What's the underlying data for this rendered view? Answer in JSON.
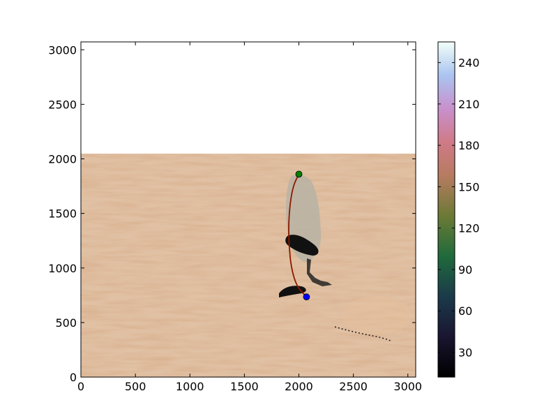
{
  "chart_data": {
    "type": "image",
    "title": "",
    "xlabel": "",
    "ylabel": "",
    "xlim": [
      0,
      3072
    ],
    "ylim": [
      0,
      3072
    ],
    "xticks": [
      0,
      500,
      1000,
      1500,
      2000,
      2500,
      3000
    ],
    "yticks": [
      0,
      500,
      1000,
      1500,
      2000,
      2500,
      3000
    ],
    "image_extent": {
      "x": [
        0,
        3072
      ],
      "y": [
        0,
        2048
      ]
    },
    "image_description_colors": {
      "sand": "#d5aa85",
      "dark": "#111111",
      "grey": "#b9b3a4"
    },
    "markers": [
      {
        "name": "start",
        "x": 2000,
        "y": 1860,
        "color": "#008000"
      },
      {
        "name": "end",
        "x": 2070,
        "y": 735,
        "color": "#0000ff"
      }
    ],
    "path": {
      "color": "#8b1a00",
      "points": [
        [
          2000,
          1860
        ],
        [
          1950,
          1760
        ],
        [
          1920,
          1600
        ],
        [
          1905,
          1400
        ],
        [
          1910,
          1200
        ],
        [
          1930,
          1000
        ],
        [
          1980,
          830
        ],
        [
          2070,
          735
        ]
      ]
    },
    "colorbar": {
      "cmap": "cubehelix",
      "range": [
        12,
        255
      ],
      "ticks": [
        30,
        60,
        90,
        120,
        150,
        180,
        210,
        240
      ]
    }
  }
}
